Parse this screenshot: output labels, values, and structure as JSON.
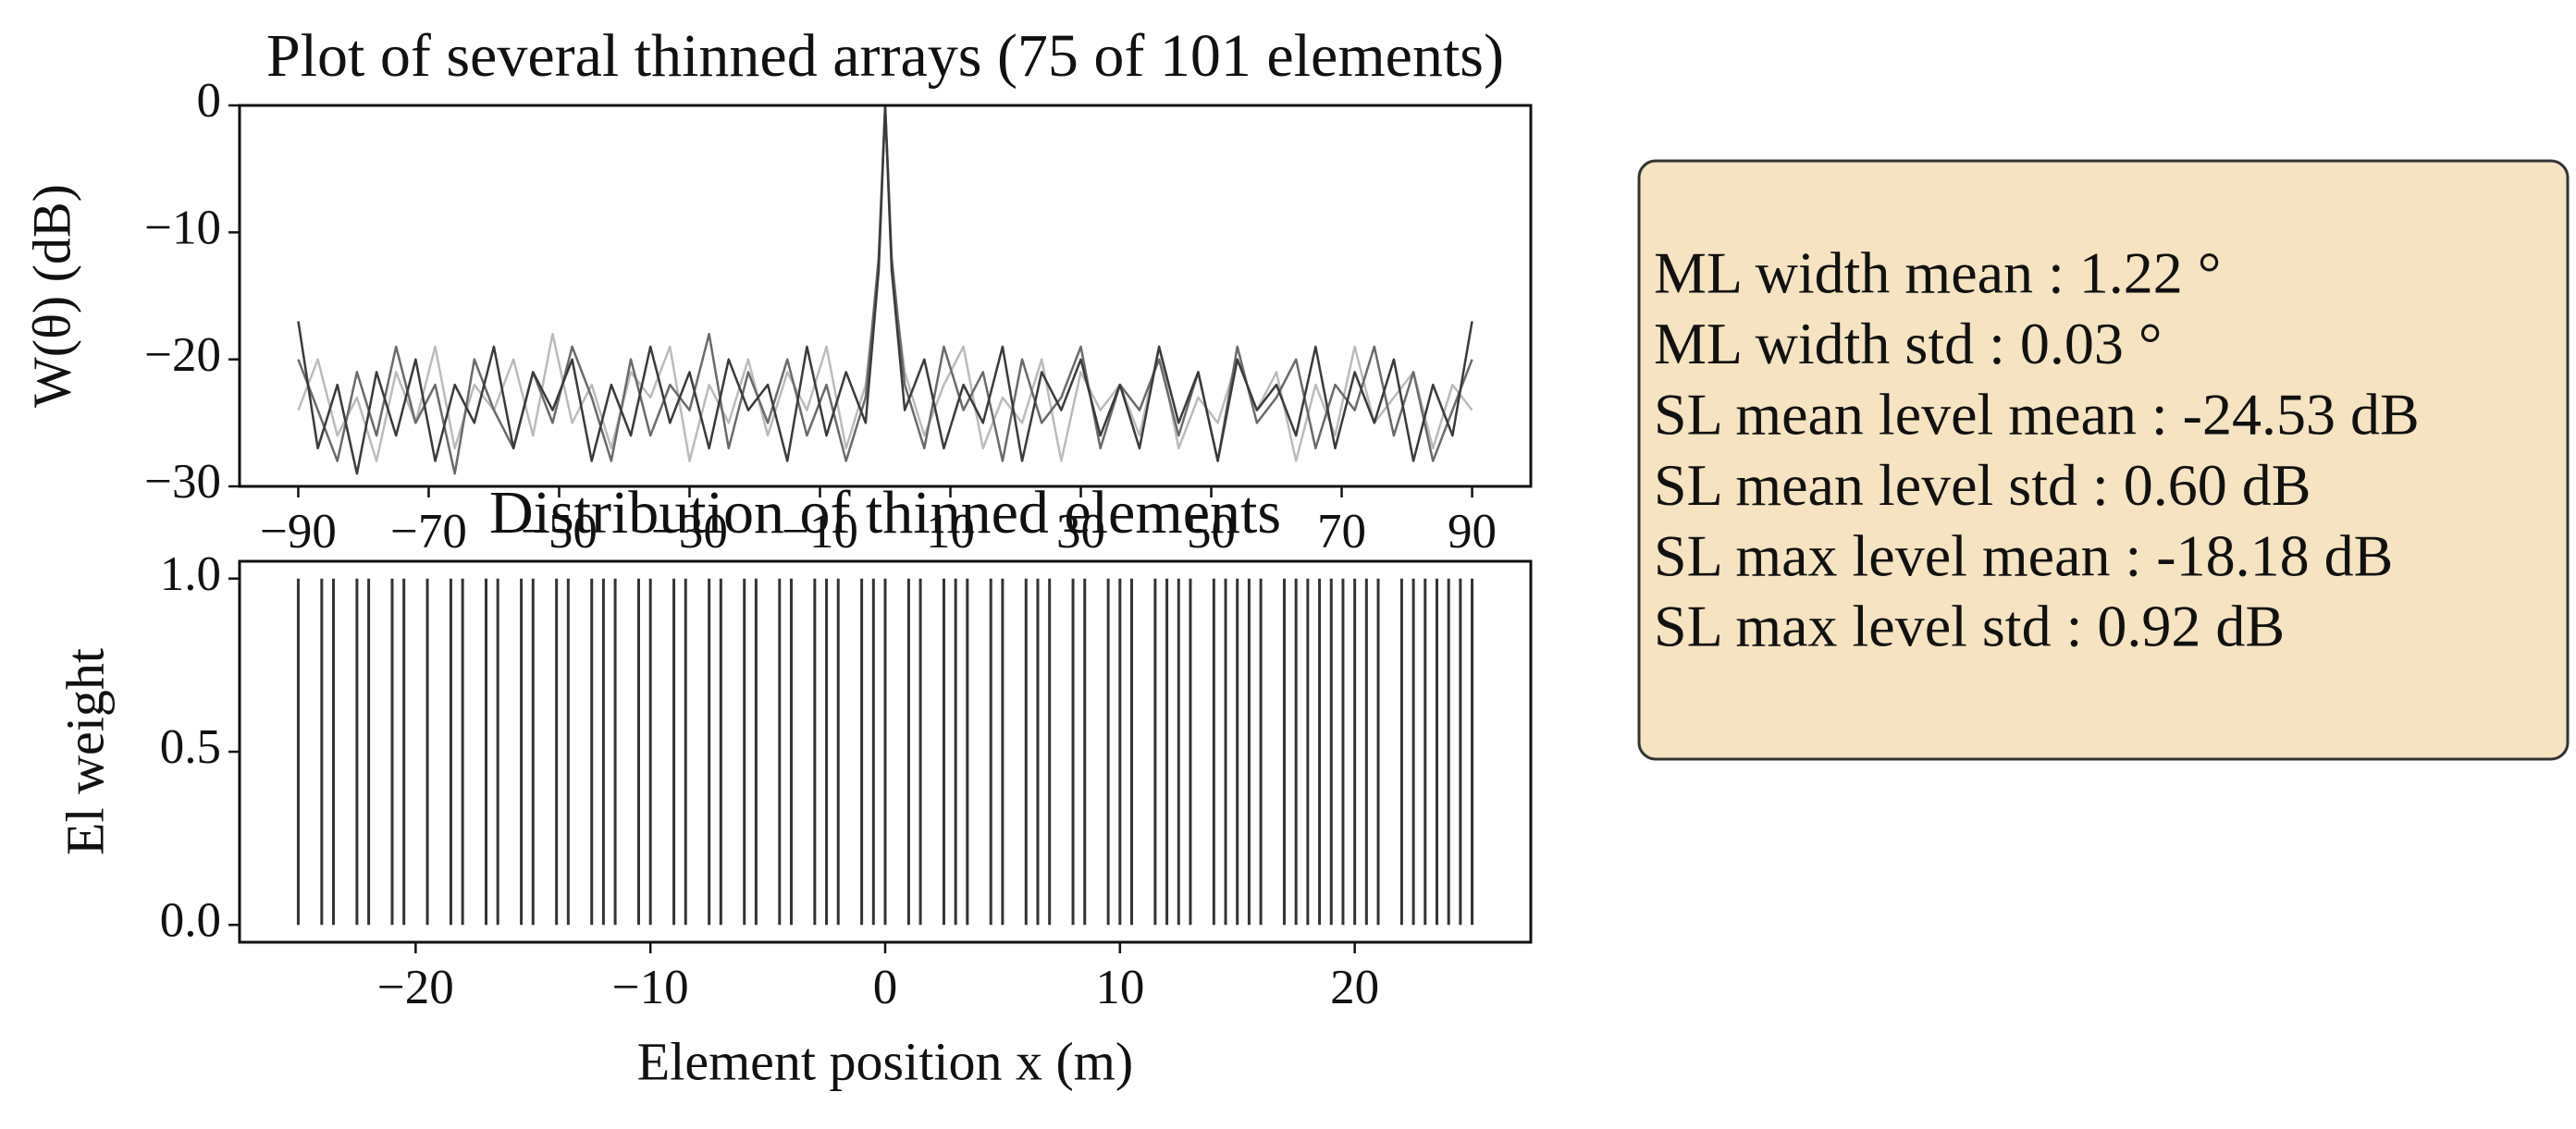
{
  "chart_data": [
    {
      "type": "line",
      "title": "Plot of several thinned arrays (75 of 101 elements)",
      "y_label": "W(θ) (dB)",
      "x": [
        -90,
        -87,
        -84,
        -81,
        -78,
        -75,
        -72,
        -69,
        -66,
        -63,
        -60,
        -57,
        -54,
        -51,
        -48,
        -45,
        -42,
        -39,
        -36,
        -33,
        -30,
        -27,
        -24,
        -21,
        -18,
        -15,
        -12,
        -9,
        -6,
        -3,
        -1,
        0,
        1,
        3,
        6,
        9,
        12,
        15,
        18,
        21,
        24,
        27,
        30,
        33,
        36,
        39,
        42,
        45,
        48,
        51,
        54,
        57,
        60,
        63,
        66,
        69,
        72,
        75,
        78,
        81,
        84,
        87,
        90
      ],
      "series": [
        {
          "color": "#bbbbbb",
          "values": [
            -24,
            -20,
            -26,
            -23,
            -28,
            -21,
            -25,
            -19,
            -27,
            -22,
            -24,
            -20,
            -26,
            -18,
            -25,
            -22,
            -27,
            -21,
            -23,
            -19,
            -28,
            -22,
            -25,
            -20,
            -26,
            -21,
            -24,
            -19,
            -27,
            -22,
            -13,
            0,
            -13,
            -21,
            -26,
            -22,
            -19,
            -27,
            -23,
            -25,
            -20,
            -28,
            -21,
            -24,
            -22,
            -26,
            -19,
            -27,
            -23,
            -25,
            -20,
            -24,
            -21,
            -28,
            -22,
            -26,
            -19,
            -25,
            -23,
            -21,
            -27,
            -22,
            -24
          ]
        },
        {
          "color": "#6a6a6a",
          "values": [
            -20,
            -24,
            -28,
            -21,
            -26,
            -19,
            -25,
            -22,
            -29,
            -20,
            -24,
            -27,
            -21,
            -25,
            -19,
            -23,
            -28,
            -20,
            -26,
            -22,
            -24,
            -18,
            -27,
            -21,
            -25,
            -20,
            -26,
            -22,
            -28,
            -23,
            -12,
            0,
            -12,
            -22,
            -27,
            -19,
            -24,
            -21,
            -28,
            -20,
            -25,
            -23,
            -19,
            -27,
            -22,
            -24,
            -20,
            -26,
            -21,
            -28,
            -19,
            -25,
            -23,
            -20,
            -27,
            -22,
            -24,
            -19,
            -26,
            -21,
            -28,
            -24,
            -20
          ]
        },
        {
          "color": "#3a3a3a",
          "values": [
            -17,
            -27,
            -22,
            -29,
            -21,
            -26,
            -20,
            -28,
            -22,
            -25,
            -19,
            -27,
            -21,
            -24,
            -20,
            -28,
            -22,
            -26,
            -19,
            -25,
            -21,
            -27,
            -20,
            -24,
            -22,
            -28,
            -19,
            -26,
            -21,
            -25,
            -13,
            0,
            -13,
            -24,
            -20,
            -27,
            -22,
            -25,
            -19,
            -28,
            -21,
            -24,
            -20,
            -26,
            -22,
            -27,
            -19,
            -25,
            -21,
            -28,
            -20,
            -24,
            -22,
            -26,
            -19,
            -27,
            -21,
            -25,
            -20,
            -28,
            -22,
            -26,
            -17
          ]
        }
      ],
      "xlim": [
        -99,
        99
      ],
      "xticks": [
        {
          "value": -90,
          "label": "−90"
        },
        {
          "value": -70,
          "label": "−70"
        },
        {
          "value": -50,
          "label": "−50"
        },
        {
          "value": -30,
          "label": "−30"
        },
        {
          "value": -10,
          "label": "−10"
        },
        10,
        30,
        50,
        70,
        90
      ],
      "ylim": [
        -30,
        0
      ],
      "yticks": [
        0,
        {
          "value": -10,
          "label": "−10"
        },
        {
          "value": -20,
          "label": "−20"
        },
        {
          "value": -30,
          "label": "−30"
        }
      ],
      "annotations": [
        "ML width mean : 1.22 °",
        "ML width std : 0.03 °",
        "SL mean level mean : -24.53 dB",
        "SL mean level std : 0.60 dB",
        "SL max level mean : -18.18 dB",
        "SL max level std : 0.92 dB"
      ]
    },
    {
      "type": "stem",
      "title": "Distribution of thinned elements",
      "x_label": "Element position x (m)",
      "y_label": "El weight",
      "color": "#333333",
      "x": [
        -25,
        -24,
        -23.5,
        -22.5,
        -22,
        -21,
        -20.5,
        -19.5,
        -18.5,
        -18,
        -17,
        -16.5,
        -15.5,
        -15,
        -14,
        -13.5,
        -12.5,
        -12,
        -11.5,
        -10.5,
        -10,
        -9,
        -8.5,
        -7.5,
        -7,
        -6,
        -5.5,
        -4.5,
        -4,
        -3,
        -2.5,
        -2,
        -1,
        -0.5,
        0,
        1,
        1.5,
        2.5,
        3,
        3.5,
        4.5,
        5,
        6,
        6.5,
        7,
        8,
        8.5,
        9.5,
        10,
        10.5,
        11.5,
        12,
        12.5,
        13,
        14,
        14.5,
        15,
        15.5,
        16,
        17,
        17.5,
        18,
        18.5,
        19,
        19.5,
        20,
        20.5,
        21,
        22,
        22.5,
        23,
        23.5,
        24,
        24.5,
        25
      ],
      "values": [
        1,
        1,
        1,
        1,
        1,
        1,
        1,
        1,
        1,
        1,
        1,
        1,
        1,
        1,
        1,
        1,
        1,
        1,
        1,
        1,
        1,
        1,
        1,
        1,
        1,
        1,
        1,
        1,
        1,
        1,
        1,
        1,
        1,
        1,
        1,
        1,
        1,
        1,
        1,
        1,
        1,
        1,
        1,
        1,
        1,
        1,
        1,
        1,
        1,
        1,
        1,
        1,
        1,
        1,
        1,
        1,
        1,
        1,
        1,
        1,
        1,
        1,
        1,
        1,
        1,
        1,
        1,
        1,
        1,
        1,
        1,
        1,
        1,
        1,
        1
      ],
      "xlim": [
        -27.5,
        27.5
      ],
      "xticks": [
        {
          "value": -20,
          "label": "−20"
        },
        {
          "value": -10,
          "label": "−10"
        },
        0,
        10,
        20
      ],
      "ylim": [
        -0.05,
        1.05
      ],
      "yticks": [
        {
          "value": 0,
          "label": "0.0"
        },
        {
          "value": 0.5,
          "label": "0.5"
        },
        {
          "value": 1,
          "label": "1.0"
        }
      ]
    }
  ]
}
